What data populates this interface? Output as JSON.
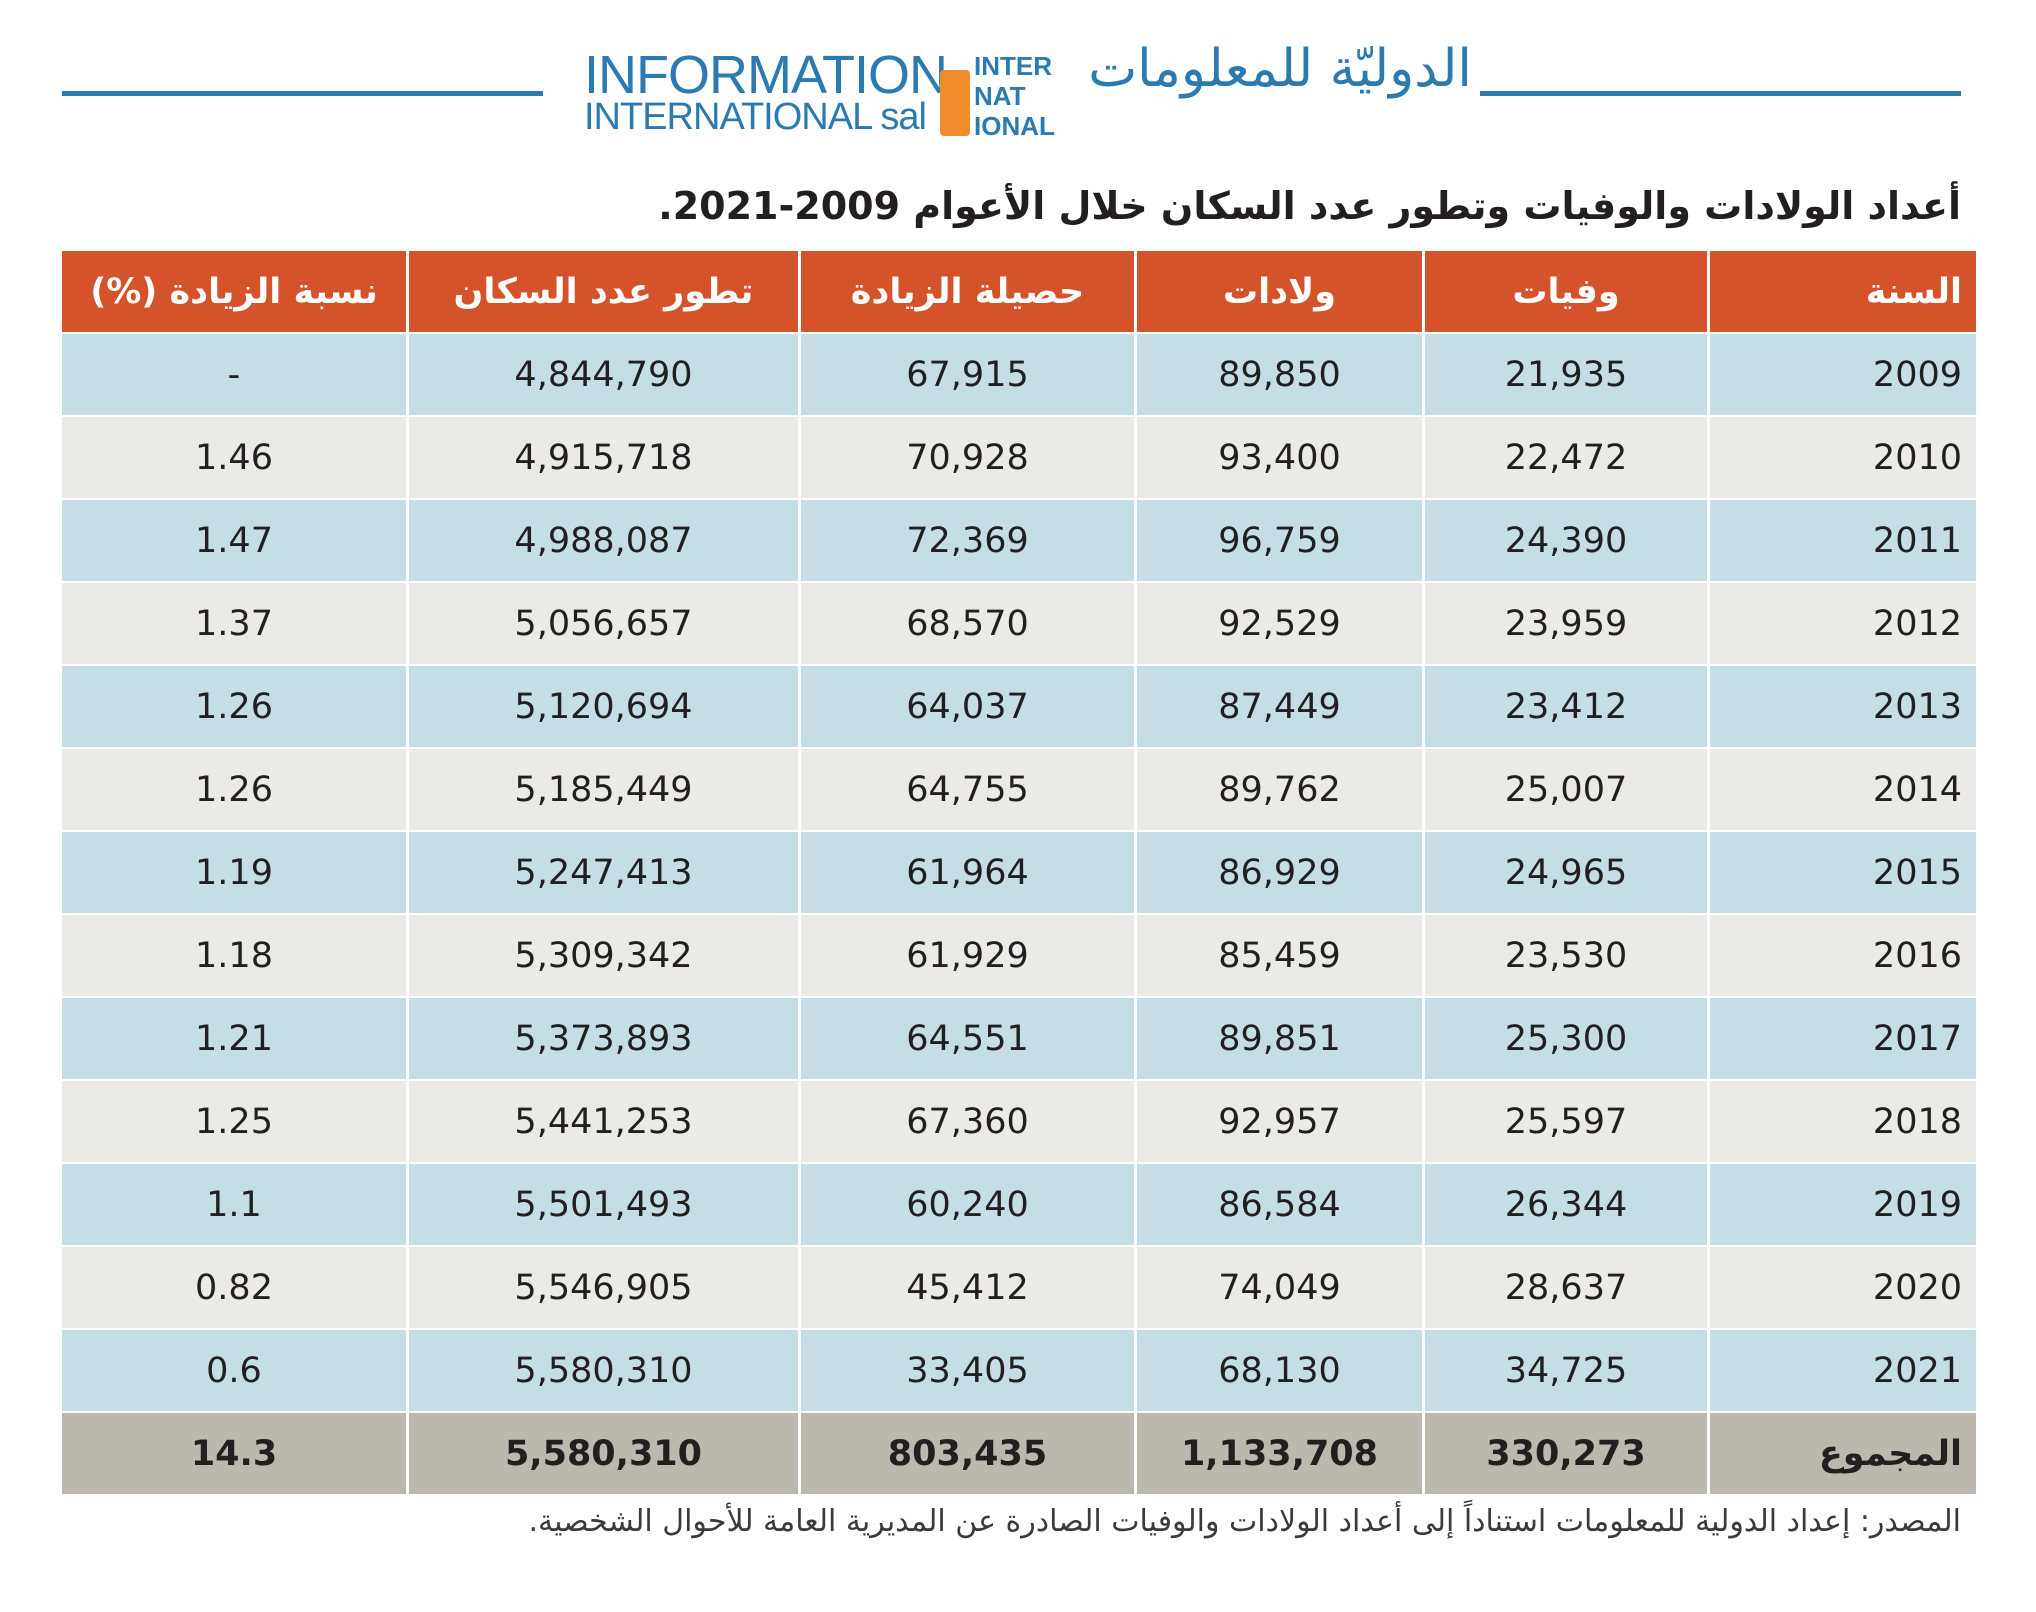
{
  "header": {
    "logo_en_1": "INFORMATION",
    "logo_en_2": "INTERNATIONAL sal",
    "logo_mark": [
      "INTER",
      "NAT",
      "IONAL"
    ],
    "logo_ar": "الدوليّة للمعلومات"
  },
  "title": "أعداد الولادات والوفيات وتطور عدد السكان خلال الأعوام 2009-2021.",
  "table": {
    "columns": [
      "السنة",
      "وفيات",
      "ولادات",
      "حصيلة الزيادة",
      "تطور عدد السكان",
      "نسبة الزيادة (%)"
    ],
    "rows": [
      [
        "2009",
        "21,935",
        "89,850",
        "67,915",
        "4,844,790",
        "-"
      ],
      [
        "2010",
        "22,472",
        "93,400",
        "70,928",
        "4,915,718",
        "1.46"
      ],
      [
        "2011",
        "24,390",
        "96,759",
        "72,369",
        "4,988,087",
        "1.47"
      ],
      [
        "2012",
        "23,959",
        "92,529",
        "68,570",
        "5,056,657",
        "1.37"
      ],
      [
        "2013",
        "23,412",
        "87,449",
        "64,037",
        "5,120,694",
        "1.26"
      ],
      [
        "2014",
        "25,007",
        "89,762",
        "64,755",
        "5,185,449",
        "1.26"
      ],
      [
        "2015",
        "24,965",
        "86,929",
        "61,964",
        "5,247,413",
        "1.19"
      ],
      [
        "2016",
        "23,530",
        "85,459",
        "61,929",
        "5,309,342",
        "1.18"
      ],
      [
        "2017",
        "25,300",
        "89,851",
        "64,551",
        "5,373,893",
        "1.21"
      ],
      [
        "2018",
        "25,597",
        "92,957",
        "67,360",
        "5,441,253",
        "1.25"
      ],
      [
        "2019",
        "26,344",
        "86,584",
        "60,240",
        "5,501,493",
        "1.1"
      ],
      [
        "2020",
        "28,637",
        "74,049",
        "45,412",
        "5,546,905",
        "0.82"
      ],
      [
        "2021",
        "34,725",
        "68,130",
        "33,405",
        "5,580,310",
        "0.6"
      ]
    ],
    "total": [
      "المجموع",
      "330,273",
      "1,133,708",
      "803,435",
      "5,580,310",
      "14.3"
    ]
  },
  "source": "المصدر: إعداد الدولية للمعلومات استناداً إلى أعداد الولادات والوفيات الصادرة عن المديرية العامة للأحوال الشخصية."
}
